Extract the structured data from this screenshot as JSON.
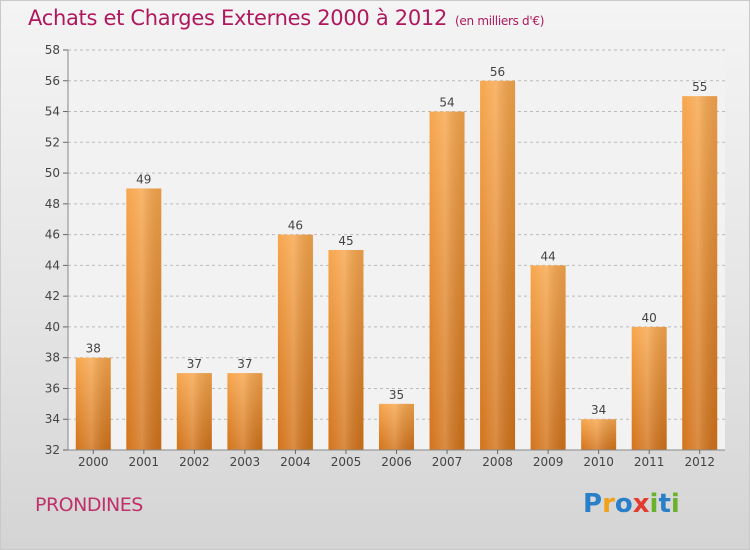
{
  "header": {
    "title": "Achats et Charges Externes 2000 à 2012",
    "unit": "(en milliers d'€)"
  },
  "footer": {
    "commune": "PRONDINES",
    "brand": {
      "letters": [
        {
          "char": "P",
          "color": "#2a7fc9"
        },
        {
          "char": "r",
          "color": "#f0a21b"
        },
        {
          "char": "o",
          "color": "#2a7fc9"
        },
        {
          "char": "x",
          "color": "#e23c2f"
        },
        {
          "char": "i",
          "color": "#6bb22c"
        },
        {
          "char": "t",
          "color": "#2a7fc9"
        },
        {
          "char": "i",
          "color": "#6bb22c"
        }
      ]
    }
  },
  "colors": {
    "title": "#b0185e",
    "bar_light": "#f7a64c",
    "bar_dark": "#d2731a",
    "grid": "#bbbbbb",
    "axis_text": "#444444"
  },
  "chart_data": {
    "type": "bar",
    "categories": [
      "2000",
      "2001",
      "2002",
      "2003",
      "2004",
      "2005",
      "2006",
      "2007",
      "2008",
      "2009",
      "2010",
      "2011",
      "2012"
    ],
    "values": [
      38,
      49,
      37,
      37,
      46,
      45,
      35,
      54,
      56,
      44,
      34,
      40,
      55
    ],
    "title": "Achats et Charges Externes 2000 à 2012",
    "xlabel": "",
    "ylabel": "",
    "ylim": [
      32,
      58
    ],
    "yticks": [
      32,
      34,
      36,
      38,
      40,
      42,
      44,
      46,
      48,
      50,
      52,
      54,
      56,
      58
    ],
    "grid": true,
    "data_labels": true
  }
}
